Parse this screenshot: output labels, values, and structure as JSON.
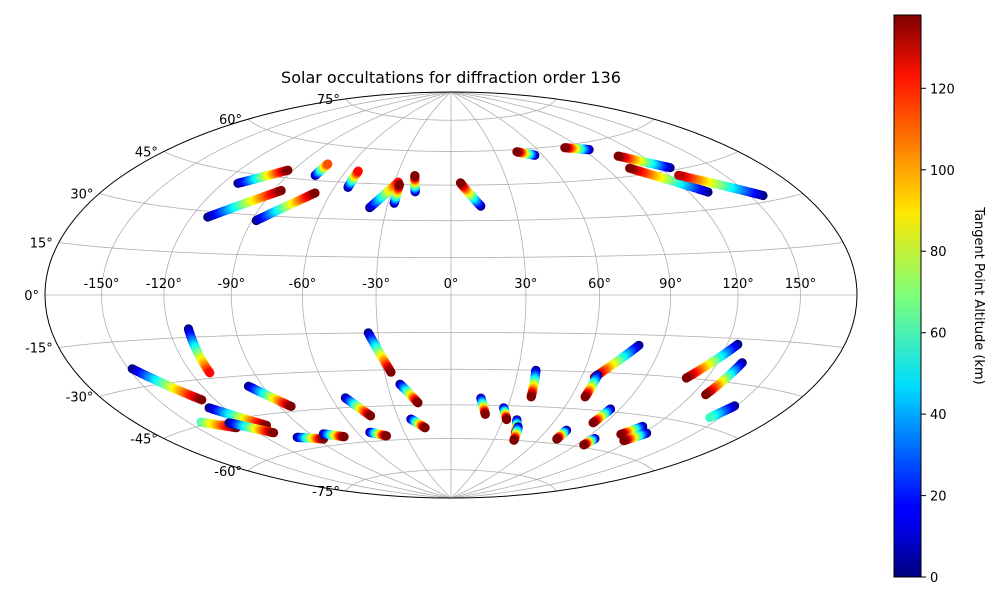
{
  "chart_data": {
    "type": "scatter",
    "projection": "hammer",
    "title": "Solar occultations for diffraction order 136",
    "grid": true,
    "longitude_ticks": [
      "-150°",
      "-120°",
      "-90°",
      "-60°",
      "-30°",
      "0°",
      "30°",
      "60°",
      "90°",
      "120°",
      "150°"
    ],
    "latitude_ticks": [
      "75°",
      "60°",
      "45°",
      "30°",
      "15°",
      "0°",
      "-15°",
      "-30°",
      "-45°",
      "-60°",
      "-75°"
    ],
    "colorbar": {
      "label": "Tangent Point Altitude (km)",
      "colormap": "jet",
      "range": [
        0,
        138
      ],
      "ticks": [
        "0",
        "20",
        "40",
        "60",
        "80",
        "100",
        "120"
      ]
    },
    "series": [
      {
        "lon": [
          -112,
          -93
        ],
        "lat": [
          41,
          48
        ],
        "alt": [
          0,
          138
        ]
      },
      {
        "lon": [
          -112,
          -86
        ],
        "lat": [
          28,
          40
        ],
        "alt": [
          0,
          138
        ]
      },
      {
        "lon": [
          -88,
          -68
        ],
        "lat": [
          28,
          40
        ],
        "alt": [
          0,
          138
        ]
      },
      {
        "lon": [
          -75,
          -74
        ],
        "lat": [
          47,
          52
        ],
        "alt": [
          0,
          110
        ]
      },
      {
        "lon": [
          -53,
          -53
        ],
        "lat": [
          43,
          50
        ],
        "alt": [
          0,
          120
        ]
      },
      {
        "lon": [
          -38,
          -28
        ],
        "lat": [
          35,
          46
        ],
        "alt": [
          0,
          120
        ]
      },
      {
        "lon": [
          -27,
          -27
        ],
        "lat": [
          37,
          45
        ],
        "alt": [
          0,
          138
        ]
      },
      {
        "lon": [
          -18,
          -20
        ],
        "lat": [
          42,
          49
        ],
        "alt": [
          0,
          138
        ]
      },
      {
        "lon": [
          14,
          5
        ],
        "lat": [
          36,
          46
        ],
        "alt": [
          0,
          138
        ]
      },
      {
        "lon": [
          55,
          45
        ],
        "lat": [
          57,
          59
        ],
        "alt": [
          0,
          138
        ]
      },
      {
        "lon": [
          94,
          80
        ],
        "lat": [
          57,
          59
        ],
        "alt": [
          0,
          138
        ]
      },
      {
        "lon": [
          126,
          106
        ],
        "lat": [
          46,
          53
        ],
        "alt": [
          0,
          138
        ]
      },
      {
        "lon": [
          130,
          103
        ],
        "lat": [
          36,
          48
        ],
        "alt": [
          0,
          138
        ]
      },
      {
        "lon": [
          157,
          125
        ],
        "lat": [
          32,
          43
        ],
        "alt": [
          0,
          130
        ]
      },
      {
        "lon": [
          -111,
          -111
        ],
        "lat": [
          -12,
          -28
        ],
        "alt": [
          0,
          120
        ]
      },
      {
        "lon": [
          -148,
          -127
        ],
        "lat": [
          -24,
          -37
        ],
        "alt": [
          0,
          138
        ]
      },
      {
        "lon": [
          -143,
          -128
        ],
        "lat": [
          -44,
          -48
        ],
        "alt": [
          60,
          138
        ]
      },
      {
        "lon": [
          -128,
          -109
        ],
        "lat": [
          -40,
          -49
        ],
        "alt": [
          0,
          138
        ]
      },
      {
        "lon": [
          -128,
          -111
        ],
        "lat": [
          -46,
          -52
        ],
        "alt": [
          0,
          138
        ]
      },
      {
        "lon": [
          -97,
          -84
        ],
        "lat": [
          -34,
          -43
        ],
        "alt": [
          0,
          138
        ]
      },
      {
        "lon": [
          -101,
          -86
        ],
        "lat": [
          -55,
          -57
        ],
        "alt": [
          0,
          138
        ]
      },
      {
        "lon": [
          -82,
          -71
        ],
        "lat": [
          -55,
          -57
        ],
        "alt": [
          0,
          138
        ]
      },
      {
        "lon": [
          -53,
          -45
        ],
        "lat": [
          -41,
          -49
        ],
        "alt": [
          0,
          138
        ]
      },
      {
        "lon": [
          -52,
          -43
        ],
        "lat": [
          -56,
          -58
        ],
        "alt": [
          0,
          138
        ]
      },
      {
        "lon": [
          -34,
          -27
        ],
        "lat": [
          -15,
          -31
        ],
        "alt": [
          0,
          138
        ]
      },
      {
        "lon": [
          -24,
          -17
        ],
        "lat": [
          -36,
          -44
        ],
        "alt": [
          0,
          138
        ]
      },
      {
        "lon": [
          -23,
          -16
        ],
        "lat": [
          -51,
          -55
        ],
        "alt": [
          0,
          138
        ]
      },
      {
        "lon": [
          15,
          19
        ],
        "lat": [
          -42,
          -49
        ],
        "alt": [
          0,
          138
        ]
      },
      {
        "lon": [
          28,
          32
        ],
        "lat": [
          -46,
          -51
        ],
        "alt": [
          0,
          138
        ]
      },
      {
        "lon": [
          38,
          40
        ],
        "lat": [
          -30,
          -41
        ],
        "alt": [
          0,
          138
        ]
      },
      {
        "lon": [
          38,
          42
        ],
        "lat": [
          -51,
          -57
        ],
        "alt": [
          0,
          138
        ]
      },
      {
        "lon": [
          41,
          44
        ],
        "lat": [
          -54,
          -60
        ],
        "alt": [
          0,
          138
        ]
      },
      {
        "lon": [
          80,
          66
        ],
        "lat": [
          -19,
          -32
        ],
        "alt": [
          0,
          138
        ]
      },
      {
        "lon": [
          67,
          67
        ],
        "lat": [
          -31,
          -40
        ],
        "alt": [
          0,
          138
        ]
      },
      {
        "lon": [
          72,
          72
        ],
        "lat": [
          -54,
          -58
        ],
        "alt": [
          0,
          138
        ]
      },
      {
        "lon": [
          85,
          83
        ],
        "lat": [
          -44,
          -50
        ],
        "alt": [
          0,
          138
        ]
      },
      {
        "lon": [
          96,
          95
        ],
        "lat": [
          -56,
          -59
        ],
        "alt": [
          0,
          138
        ]
      },
      {
        "lon": [
          125,
          110
        ],
        "lat": [
          -17,
          -30
        ],
        "alt": [
          0,
          138
        ]
      },
      {
        "lon": [
          132,
          127
        ],
        "lat": [
          -23,
          -35
        ],
        "alt": [
          0,
          138
        ]
      },
      {
        "lon": [
          114,
          108
        ],
        "lat": [
          -49,
          -53
        ],
        "alt": [
          0,
          138
        ]
      },
      {
        "lon": [
          122,
          116
        ],
        "lat": [
          -51,
          -55
        ],
        "alt": [
          0,
          138
        ]
      },
      {
        "lon": [
          149,
          144
        ],
        "lat": [
          -37,
          -42
        ],
        "alt": [
          0,
          60
        ]
      }
    ]
  }
}
